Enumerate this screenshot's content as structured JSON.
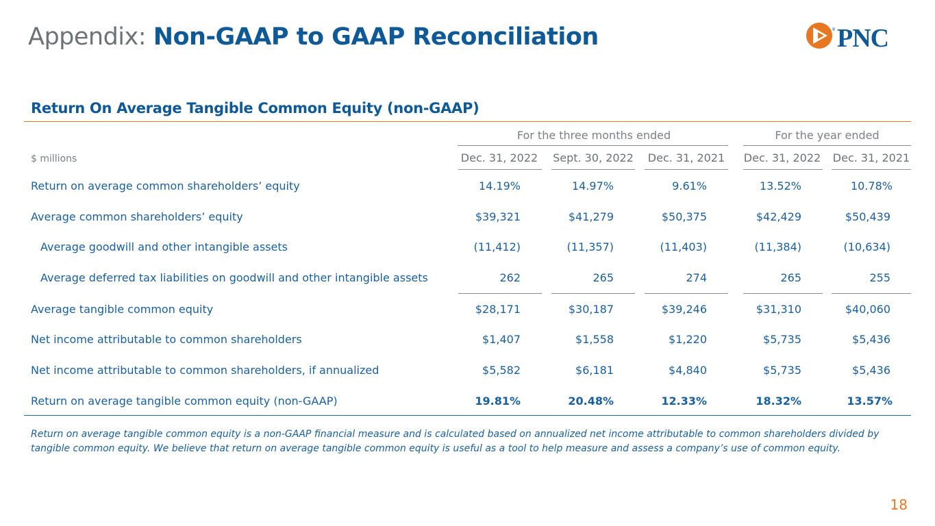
{
  "title": {
    "prefix": "Appendix:",
    "main": "Non-GAAP to GAAP Reconciliation"
  },
  "logo": {
    "text": "PNC",
    "mark": "®"
  },
  "section_title": "Return On Average Tangible Common Equity (non-GAAP)",
  "column_groups": [
    "For the three months ended",
    "For the year ended"
  ],
  "units_label": "$ millions",
  "column_headers": [
    "Dec. 31, 2022",
    "Sept. 30, 2022",
    "Dec. 31, 2021",
    "Dec. 31, 2022",
    "Dec. 31, 2021"
  ],
  "rows": [
    {
      "label": "Return on average common shareholders’ equity",
      "values": [
        "14.19%",
        "14.97%",
        "9.61%",
        "13.52%",
        "10.78%"
      ]
    },
    {
      "label": "Average common shareholders’ equity",
      "values": [
        "$39,321",
        "$41,279",
        "$50,375",
        "$42,429",
        "$50,439"
      ]
    },
    {
      "label": "Average goodwill and other intangible assets",
      "values": [
        "(11,412)",
        "(11,357)",
        "(11,403)",
        "(11,384)",
        "(10,634)"
      ]
    },
    {
      "label": "Average deferred tax liabilities on goodwill and other intangible assets",
      "values": [
        "262",
        "265",
        "274",
        "265",
        "255"
      ]
    },
    {
      "label": "Average tangible common equity",
      "values": [
        "$28,171",
        "$30,187",
        "$39,246",
        "$31,310",
        "$40,060"
      ]
    },
    {
      "label": "Net income attributable to common shareholders",
      "values": [
        "$1,407",
        "$1,558",
        "$1,220",
        "$5,735",
        "$5,436"
      ]
    },
    {
      "label": "Net income attributable to common shareholders, if annualized",
      "values": [
        "$5,582",
        "$6,181",
        "$4,840",
        "$5,735",
        "$5,436"
      ]
    },
    {
      "label": "Return on average tangible common equity (non-GAAP)",
      "values": [
        "19.81%",
        "20.48%",
        "12.33%",
        "18.32%",
        "13.57%"
      ]
    }
  ],
  "footnote": "Return on average tangible common equity is a non-GAAP financial measure and is calculated based on annualized net income attributable to common shareholders divided by tangible common equity. We believe that return on average tangible common equity is useful as a tool to help measure and assess a company’s use of common equity.",
  "page_number": "18",
  "colors": {
    "brand_blue": "#0f5a96",
    "accent_orange": "#e87722",
    "text_gray": "#6d7277"
  }
}
